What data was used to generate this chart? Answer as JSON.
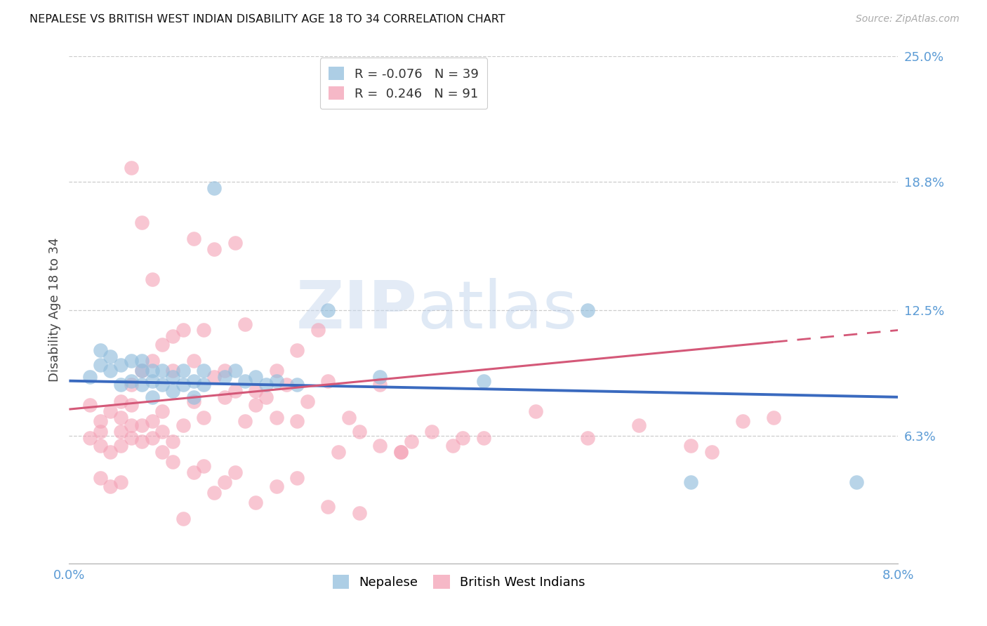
{
  "title": "NEPALESE VS BRITISH WEST INDIAN DISABILITY AGE 18 TO 34 CORRELATION CHART",
  "source": "Source: ZipAtlas.com",
  "ylabel": "Disability Age 18 to 34",
  "xmin": 0.0,
  "xmax": 0.08,
  "ymin": 0.0,
  "ymax": 0.25,
  "xtick_positions": [
    0.0,
    0.08
  ],
  "xtick_labels": [
    "0.0%",
    "8.0%"
  ],
  "ytick_values": [
    0.063,
    0.125,
    0.188,
    0.25
  ],
  "ytick_labels": [
    "6.3%",
    "12.5%",
    "18.8%",
    "25.0%"
  ],
  "watermark_zip": "ZIP",
  "watermark_atlas": "atlas",
  "legend_r_labels": [
    "R = -0.076   N = 39",
    "R =  0.246   N = 91"
  ],
  "legend_bottom_labels": [
    "Nepalese",
    "British West Indians"
  ],
  "nepalese_color": "#92bedd",
  "bwi_color": "#f4a0b5",
  "nepalese_line_color": "#3a6abf",
  "bwi_line_color": "#d45878",
  "nepalese_x": [
    0.002,
    0.003,
    0.003,
    0.004,
    0.004,
    0.005,
    0.005,
    0.006,
    0.006,
    0.007,
    0.007,
    0.007,
    0.008,
    0.008,
    0.008,
    0.009,
    0.009,
    0.01,
    0.01,
    0.011,
    0.011,
    0.012,
    0.012,
    0.013,
    0.013,
    0.014,
    0.015,
    0.016,
    0.017,
    0.018,
    0.019,
    0.02,
    0.022,
    0.025,
    0.03,
    0.04,
    0.05,
    0.06,
    0.076
  ],
  "nepalese_y": [
    0.092,
    0.098,
    0.105,
    0.095,
    0.102,
    0.088,
    0.098,
    0.09,
    0.1,
    0.088,
    0.095,
    0.1,
    0.082,
    0.09,
    0.095,
    0.088,
    0.095,
    0.085,
    0.092,
    0.088,
    0.095,
    0.082,
    0.09,
    0.088,
    0.095,
    0.185,
    0.092,
    0.095,
    0.09,
    0.092,
    0.088,
    0.09,
    0.088,
    0.125,
    0.092,
    0.09,
    0.125,
    0.04,
    0.04
  ],
  "bwi_x": [
    0.002,
    0.002,
    0.003,
    0.003,
    0.003,
    0.004,
    0.004,
    0.005,
    0.005,
    0.005,
    0.005,
    0.006,
    0.006,
    0.006,
    0.006,
    0.007,
    0.007,
    0.007,
    0.008,
    0.008,
    0.008,
    0.009,
    0.009,
    0.009,
    0.01,
    0.01,
    0.01,
    0.011,
    0.011,
    0.012,
    0.012,
    0.012,
    0.013,
    0.013,
    0.014,
    0.014,
    0.015,
    0.015,
    0.016,
    0.016,
    0.017,
    0.017,
    0.018,
    0.018,
    0.019,
    0.02,
    0.02,
    0.021,
    0.022,
    0.022,
    0.023,
    0.024,
    0.025,
    0.026,
    0.027,
    0.028,
    0.03,
    0.03,
    0.032,
    0.033,
    0.035,
    0.037,
    0.04,
    0.045,
    0.05,
    0.055,
    0.06,
    0.062,
    0.065,
    0.068,
    0.003,
    0.004,
    0.005,
    0.006,
    0.007,
    0.008,
    0.009,
    0.01,
    0.011,
    0.012,
    0.013,
    0.014,
    0.015,
    0.016,
    0.018,
    0.02,
    0.022,
    0.025,
    0.028,
    0.032,
    0.038
  ],
  "bwi_y": [
    0.078,
    0.062,
    0.058,
    0.065,
    0.07,
    0.055,
    0.075,
    0.058,
    0.065,
    0.072,
    0.08,
    0.062,
    0.068,
    0.078,
    0.088,
    0.06,
    0.068,
    0.095,
    0.062,
    0.07,
    0.1,
    0.065,
    0.075,
    0.108,
    0.06,
    0.095,
    0.112,
    0.068,
    0.115,
    0.08,
    0.1,
    0.16,
    0.072,
    0.115,
    0.092,
    0.155,
    0.082,
    0.095,
    0.085,
    0.158,
    0.07,
    0.118,
    0.078,
    0.085,
    0.082,
    0.072,
    0.095,
    0.088,
    0.07,
    0.105,
    0.08,
    0.115,
    0.09,
    0.055,
    0.072,
    0.065,
    0.058,
    0.088,
    0.055,
    0.06,
    0.065,
    0.058,
    0.062,
    0.075,
    0.062,
    0.068,
    0.058,
    0.055,
    0.07,
    0.072,
    0.042,
    0.038,
    0.04,
    0.195,
    0.168,
    0.14,
    0.055,
    0.05,
    0.022,
    0.045,
    0.048,
    0.035,
    0.04,
    0.045,
    0.03,
    0.038,
    0.042,
    0.028,
    0.025,
    0.055,
    0.062
  ]
}
